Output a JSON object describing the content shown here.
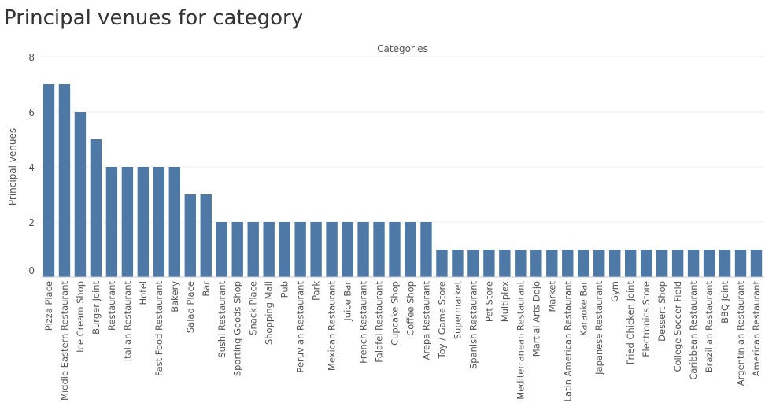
{
  "page": {
    "title": "Principal venues for category"
  },
  "chart_data": {
    "type": "bar",
    "title": "Principal venues for category",
    "column_header": "Categories",
    "xlabel": "",
    "ylabel": "Principal venues",
    "ylim": [
      0,
      8
    ],
    "yticks": [
      0,
      2,
      4,
      6,
      8
    ],
    "grid": true,
    "bar_color": "#4e79a7",
    "categories": [
      "Pizza Place",
      "Middle Eastern Restaurant",
      "Ice Cream Shop",
      "Burger Joint",
      "Restaurant",
      "Italian Restaurant",
      "Hotel",
      "Fast Food Restaurant",
      "Bakery",
      "Salad Place",
      "Bar",
      "Sushi Restaurant",
      "Sporting Goods Shop",
      "Snack Place",
      "Shopping Mall",
      "Pub",
      "Peruvian Restaurant",
      "Park",
      "Mexican Restaurant",
      "Juice Bar",
      "French Restaurant",
      "Falafel Restaurant",
      "Cupcake Shop",
      "Coffee Shop",
      "Arepa Restaurant",
      "Toy / Game Store",
      "Supermarket",
      "Spanish Restaurant",
      "Pet Store",
      "Multiplex",
      "Mediterranean Restaurant",
      "Martial Arts Dojo",
      "Market",
      "Latin American Restaurant",
      "Karaoke Bar",
      "Japanese Restaurant",
      "Gym",
      "Fried Chicken Joint",
      "Electronics Store",
      "Dessert Shop",
      "College Soccer Field",
      "Caribbean Restaurant",
      "Brazilian Restaurant",
      "BBQ Joint",
      "Argentinian Restaurant",
      "American Restaurant"
    ],
    "values": [
      7,
      7,
      6,
      5,
      4,
      4,
      4,
      4,
      4,
      3,
      3,
      2,
      2,
      2,
      2,
      2,
      2,
      2,
      2,
      2,
      2,
      2,
      2,
      2,
      2,
      1,
      1,
      1,
      1,
      1,
      1,
      1,
      1,
      1,
      1,
      1,
      1,
      1,
      1,
      1,
      1,
      1,
      1,
      1,
      1,
      1
    ]
  }
}
